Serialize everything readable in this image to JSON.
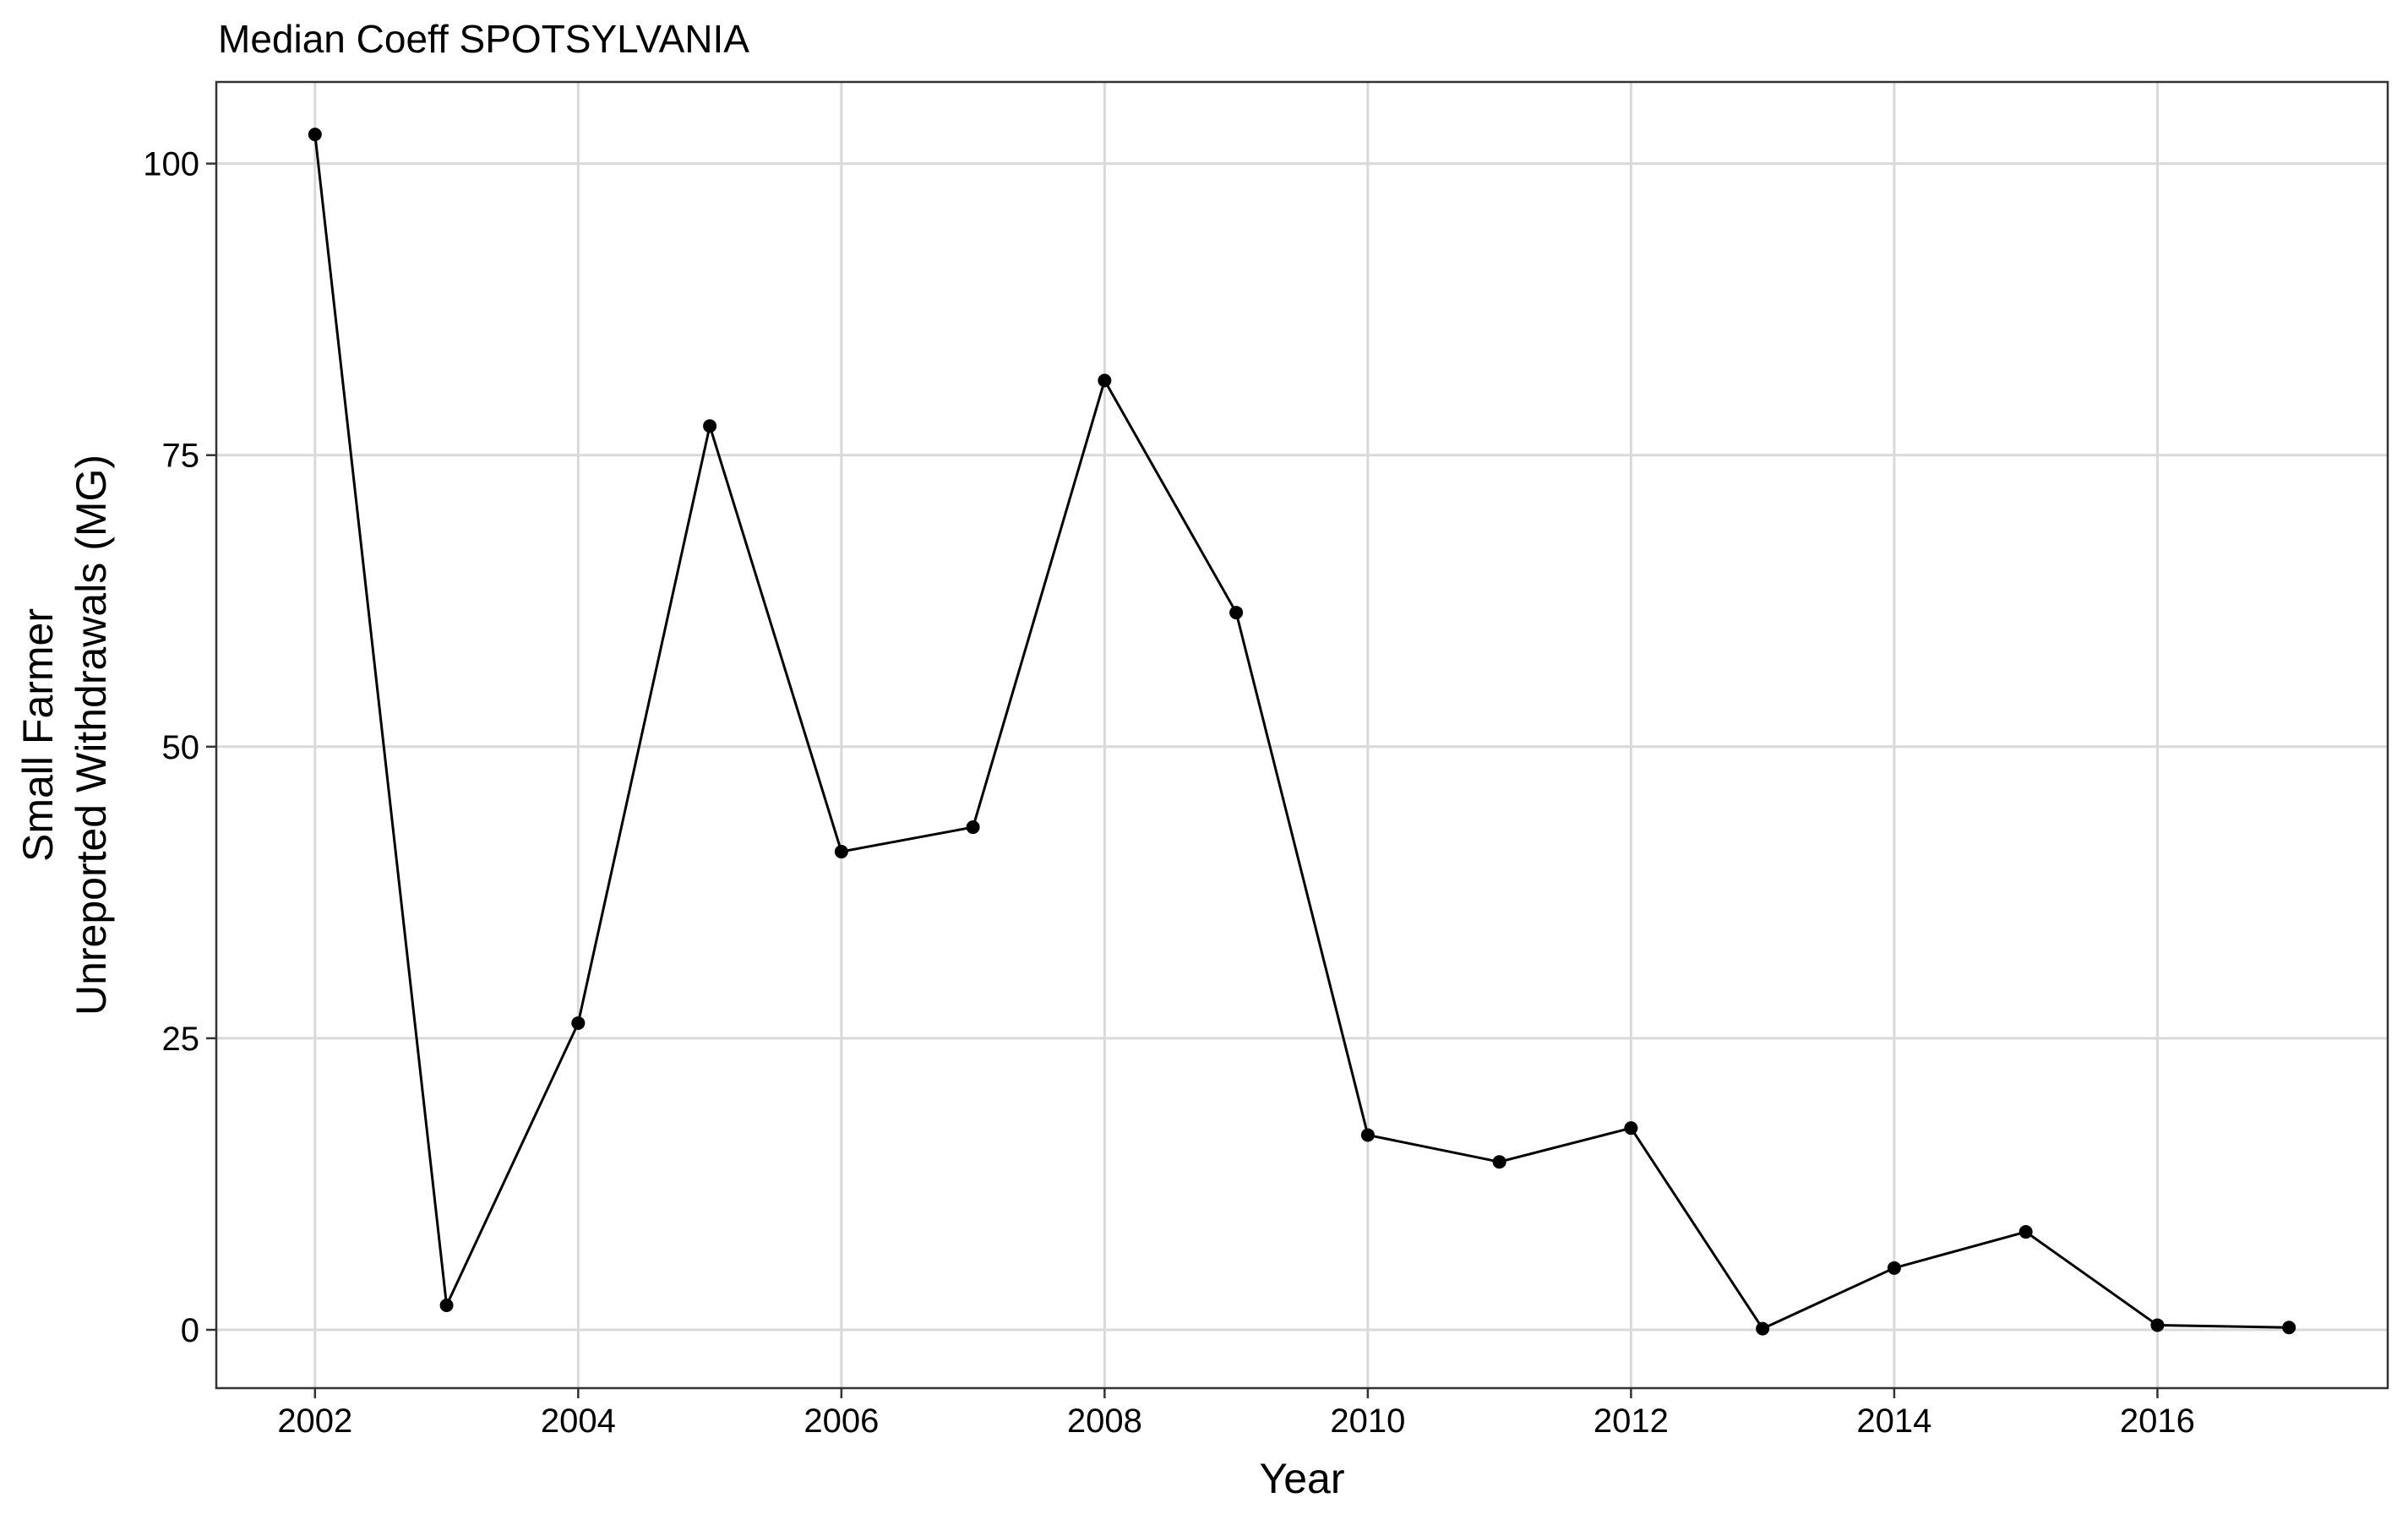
{
  "chart_data": {
    "type": "line",
    "title": "Median Coeff SPOTSYLVANIA",
    "xlabel": "Year",
    "ylabel_lines": [
      "Small Farmer",
      "Unreported Withdrawals (MG)"
    ],
    "x_ticks": [
      2002,
      2004,
      2006,
      2008,
      2010,
      2012,
      2014,
      2016
    ],
    "y_ticks": [
      0,
      25,
      50,
      75,
      100
    ],
    "x_range": [
      2001.25,
      2017.75
    ],
    "y_range": [
      -5,
      107
    ],
    "grid": true,
    "legend": "none",
    "colors": {
      "line": "#000000",
      "point": "#000000",
      "grid": "#d9d9d9",
      "border": "#333333"
    },
    "series": [
      {
        "x": [
          2002,
          2003,
          2004,
          2005,
          2006,
          2007,
          2008,
          2009,
          2010,
          2011,
          2012,
          2013,
          2014,
          2015,
          2016,
          2017
        ],
        "values": [
          102.5,
          2.1,
          26.3,
          77.5,
          41.0,
          43.1,
          81.4,
          61.5,
          16.7,
          14.4,
          17.3,
          0.1,
          5.3,
          8.4,
          0.4,
          0.2
        ]
      }
    ]
  }
}
